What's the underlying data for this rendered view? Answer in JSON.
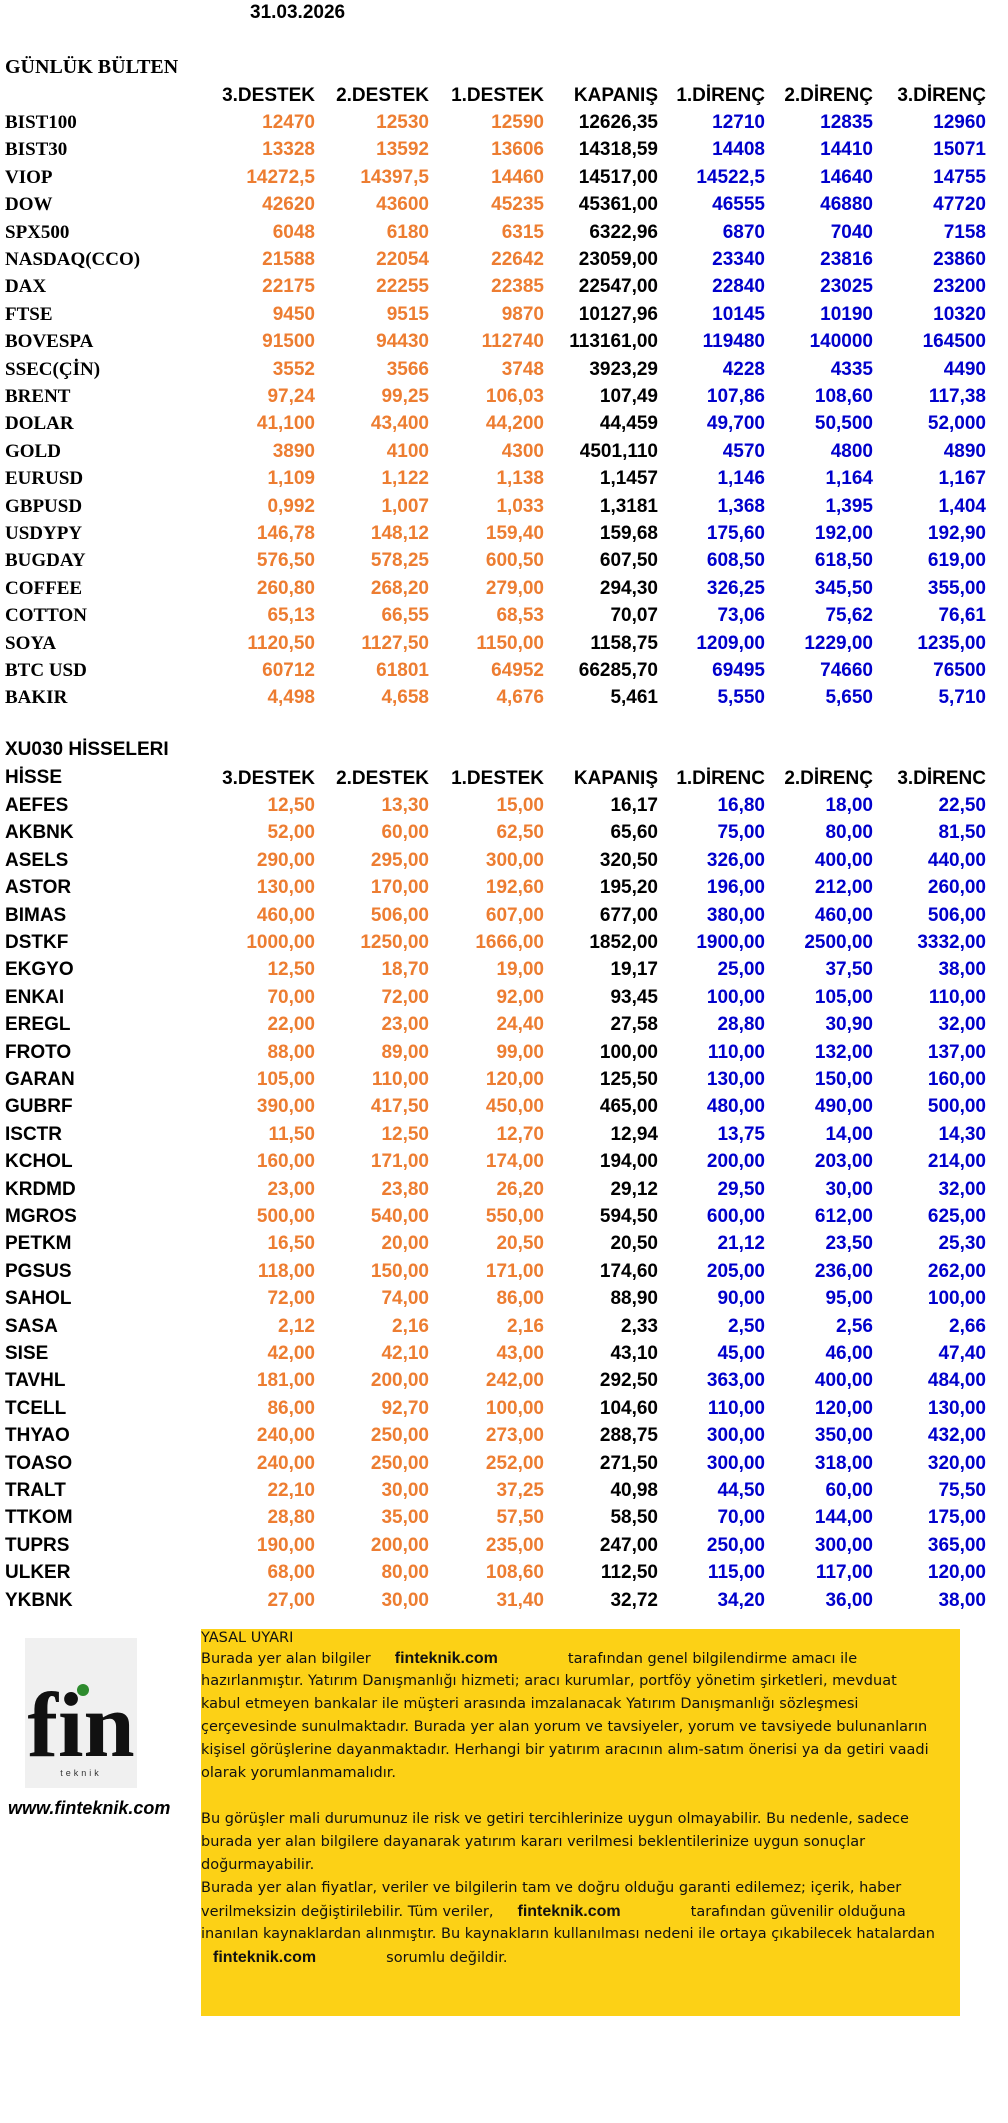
{
  "date": "31.03.2026",
  "table1": {
    "title": "GÜNLÜK BÜLTEN",
    "columns": [
      "3.DESTEK",
      "2.DESTEK",
      "1.DESTEK",
      "KAPANIŞ",
      "1.DİRENÇ",
      "2.DİRENÇ",
      "3.DİRENÇ"
    ],
    "rows": [
      {
        "name": "BIST100",
        "values": [
          "12470",
          "12530",
          "12590",
          "12626,35",
          "12710",
          "12835",
          "12960"
        ]
      },
      {
        "name": "BIST30",
        "values": [
          "13328",
          "13592",
          "13606",
          "14318,59",
          "14408",
          "14410",
          "15071"
        ]
      },
      {
        "name": "VIOP",
        "values": [
          "14272,5",
          "14397,5",
          "14460",
          "14517,00",
          "14522,5",
          "14640",
          "14755"
        ]
      },
      {
        "name": "DOW",
        "values": [
          "42620",
          "43600",
          "45235",
          "45361,00",
          "46555",
          "46880",
          "47720"
        ]
      },
      {
        "name": "SPX500",
        "values": [
          "6048",
          "6180",
          "6315",
          "6322,96",
          "6870",
          "7040",
          "7158"
        ]
      },
      {
        "name": "NASDAQ(CCO)",
        "values": [
          "21588",
          "22054",
          "22642",
          "23059,00",
          "23340",
          "23816",
          "23860"
        ]
      },
      {
        "name": "DAX",
        "values": [
          "22175",
          "22255",
          "22385",
          "22547,00",
          "22840",
          "23025",
          "23200"
        ]
      },
      {
        "name": "FTSE",
        "values": [
          "9450",
          "9515",
          "9870",
          "10127,96",
          "10145",
          "10190",
          "10320"
        ]
      },
      {
        "name": "BOVESPA",
        "values": [
          "91500",
          "94430",
          "112740",
          "113161,00",
          "119480",
          "140000",
          "164500"
        ]
      },
      {
        "name": "SSEC(ÇİN)",
        "values": [
          "3552",
          "3566",
          "3748",
          "3923,29",
          "4228",
          "4335",
          "4490"
        ]
      },
      {
        "name": "BRENT",
        "values": [
          "97,24",
          "99,25",
          "106,03",
          "107,49",
          "107,86",
          "108,60",
          "117,38"
        ]
      },
      {
        "name": "DOLAR",
        "values": [
          "41,100",
          "43,400",
          "44,200",
          "44,459",
          "49,700",
          "50,500",
          "52,000"
        ]
      },
      {
        "name": "GOLD",
        "values": [
          "3890",
          "4100",
          "4300",
          "4501,110",
          "4570",
          "4800",
          "4890"
        ]
      },
      {
        "name": "EURUSD",
        "values": [
          "1,109",
          "1,122",
          "1,138",
          "1,1457",
          "1,146",
          "1,164",
          "1,167"
        ]
      },
      {
        "name": "GBPUSD",
        "values": [
          "0,992",
          "1,007",
          "1,033",
          "1,3181",
          "1,368",
          "1,395",
          "1,404"
        ]
      },
      {
        "name": "USDYPY",
        "values": [
          "146,78",
          "148,12",
          "159,40",
          "159,68",
          "175,60",
          "192,00",
          "192,90"
        ]
      },
      {
        "name": "BUGDAY",
        "values": [
          "576,50",
          "578,25",
          "600,50",
          "607,50",
          "608,50",
          "618,50",
          "619,00"
        ]
      },
      {
        "name": "COFFEE",
        "values": [
          "260,80",
          "268,20",
          "279,00",
          "294,30",
          "326,25",
          "345,50",
          "355,00"
        ]
      },
      {
        "name": "COTTON",
        "values": [
          "65,13",
          "66,55",
          "68,53",
          "70,07",
          "73,06",
          "75,62",
          "76,61"
        ]
      },
      {
        "name": "SOYA",
        "values": [
          "1120,50",
          "1127,50",
          "1150,00",
          "1158,75",
          "1209,00",
          "1229,00",
          "1235,00"
        ]
      },
      {
        "name": "BTC USD",
        "values": [
          "60712",
          "61801",
          "64952",
          "66285,70",
          "69495",
          "74660",
          "76500"
        ]
      },
      {
        "name": "BAKIR",
        "values": [
          "4,498",
          "4,658",
          "4,676",
          "5,461",
          "5,550",
          "5,650",
          "5,710"
        ]
      }
    ]
  },
  "table2": {
    "title": "XU030 HİSSELERI",
    "name_header": "HİSSE",
    "columns": [
      "3.DESTEK",
      "2.DESTEK",
      "1.DESTEK",
      "KAPANIŞ",
      "1.DİRENC",
      "2.DİRENÇ",
      "3.DİRENC"
    ],
    "rows": [
      {
        "name": "AEFES",
        "values": [
          "12,50",
          "13,30",
          "15,00",
          "16,17",
          "16,80",
          "18,00",
          "22,50"
        ]
      },
      {
        "name": "AKBNK",
        "values": [
          "52,00",
          "60,00",
          "62,50",
          "65,60",
          "75,00",
          "80,00",
          "81,50"
        ]
      },
      {
        "name": "ASELS",
        "values": [
          "290,00",
          "295,00",
          "300,00",
          "320,50",
          "326,00",
          "400,00",
          "440,00"
        ]
      },
      {
        "name": "ASTOR",
        "values": [
          "130,00",
          "170,00",
          "192,60",
          "195,20",
          "196,00",
          "212,00",
          "260,00"
        ]
      },
      {
        "name": "BIMAS",
        "values": [
          "460,00",
          "506,00",
          "607,00",
          "677,00",
          "380,00",
          "460,00",
          "506,00"
        ]
      },
      {
        "name": "DSTKF",
        "values": [
          "1000,00",
          "1250,00",
          "1666,00",
          "1852,00",
          "1900,00",
          "2500,00",
          "3332,00"
        ]
      },
      {
        "name": "EKGYO",
        "values": [
          "12,50",
          "18,70",
          "19,00",
          "19,17",
          "25,00",
          "37,50",
          "38,00"
        ]
      },
      {
        "name": "ENKAI",
        "values": [
          "70,00",
          "72,00",
          "92,00",
          "93,45",
          "100,00",
          "105,00",
          "110,00"
        ]
      },
      {
        "name": "EREGL",
        "values": [
          "22,00",
          "23,00",
          "24,40",
          "27,58",
          "28,80",
          "30,90",
          "32,00"
        ]
      },
      {
        "name": "FROTO",
        "values": [
          "88,00",
          "89,00",
          "99,00",
          "100,00",
          "110,00",
          "132,00",
          "137,00"
        ]
      },
      {
        "name": "GARAN",
        "values": [
          "105,00",
          "110,00",
          "120,00",
          "125,50",
          "130,00",
          "150,00",
          "160,00"
        ]
      },
      {
        "name": "GUBRF",
        "values": [
          "390,00",
          "417,50",
          "450,00",
          "465,00",
          "480,00",
          "490,00",
          "500,00"
        ]
      },
      {
        "name": "ISCTR",
        "values": [
          "11,50",
          "12,50",
          "12,70",
          "12,94",
          "13,75",
          "14,00",
          "14,30"
        ]
      },
      {
        "name": "KCHOL",
        "values": [
          "160,00",
          "171,00",
          "174,00",
          "194,00",
          "200,00",
          "203,00",
          "214,00"
        ]
      },
      {
        "name": "KRDMD",
        "values": [
          "23,00",
          "23,80",
          "26,20",
          "29,12",
          "29,50",
          "30,00",
          "32,00"
        ]
      },
      {
        "name": "MGROS",
        "values": [
          "500,00",
          "540,00",
          "550,00",
          "594,50",
          "600,00",
          "612,00",
          "625,00"
        ]
      },
      {
        "name": "PETKM",
        "values": [
          "16,50",
          "20,00",
          "20,50",
          "20,50",
          "21,12",
          "23,50",
          "25,30"
        ]
      },
      {
        "name": "PGSUS",
        "values": [
          "118,00",
          "150,00",
          "171,00",
          "174,60",
          "205,00",
          "236,00",
          "262,00"
        ]
      },
      {
        "name": "SAHOL",
        "values": [
          "72,00",
          "74,00",
          "86,00",
          "88,90",
          "90,00",
          "95,00",
          "100,00"
        ]
      },
      {
        "name": "SASA",
        "values": [
          "2,12",
          "2,16",
          "2,16",
          "2,33",
          "2,50",
          "2,56",
          "2,66"
        ]
      },
      {
        "name": "SISE",
        "values": [
          "42,00",
          "42,10",
          "43,00",
          "43,10",
          "45,00",
          "46,00",
          "47,40"
        ]
      },
      {
        "name": "TAVHL",
        "values": [
          "181,00",
          "200,00",
          "242,00",
          "292,50",
          "363,00",
          "400,00",
          "484,00"
        ]
      },
      {
        "name": "TCELL",
        "values": [
          "86,00",
          "92,70",
          "100,00",
          "104,60",
          "110,00",
          "120,00",
          "130,00"
        ]
      },
      {
        "name": "THYAO",
        "values": [
          "240,00",
          "250,00",
          "273,00",
          "288,75",
          "300,00",
          "350,00",
          "432,00"
        ]
      },
      {
        "name": "TOASO",
        "values": [
          "240,00",
          "250,00",
          "252,00",
          "271,50",
          "300,00",
          "318,00",
          "320,00"
        ]
      },
      {
        "name": "TRALT",
        "values": [
          "22,10",
          "30,00",
          "37,25",
          "40,98",
          "44,50",
          "60,00",
          "75,50"
        ]
      },
      {
        "name": "TTKOM",
        "values": [
          "28,80",
          "35,00",
          "57,50",
          "58,50",
          "70,00",
          "144,00",
          "175,00"
        ]
      },
      {
        "name": "TUPRS",
        "values": [
          "190,00",
          "200,00",
          "235,00",
          "247,00",
          "250,00",
          "300,00",
          "365,00"
        ]
      },
      {
        "name": "ULKER",
        "values": [
          "68,00",
          "80,00",
          "108,60",
          "112,50",
          "115,00",
          "117,00",
          "120,00"
        ]
      },
      {
        "name": "YKBNK",
        "values": [
          "27,00",
          "30,00",
          "31,40",
          "32,72",
          "34,20",
          "36,00",
          "38,00"
        ]
      }
    ]
  },
  "logo": {
    "text": "fin",
    "sub": "teknik",
    "url": "www.finteknik.com"
  },
  "disclaimer": {
    "title": "YASAL UYARI",
    "lines": [
      [
        {
          "t": "Burada yer alan bilgiler"
        },
        {
          "t": "finteknik.com",
          "bold": true
        },
        {
          "t": "tarafından genel bilgilendirme amacı ile"
        }
      ],
      [
        {
          "t": "hazırlanmıştır. Yatırım Danışmanlığı hizmeti; aracı kurumlar, portföy yönetim şirketleri, mevduat"
        }
      ],
      [
        {
          "t": "kabul etmeyen bankalar ile müşteri arasında imzalanacak Yatırım Danışmanlığı sözleşmesi"
        }
      ],
      [
        {
          "t": "çerçevesinde sunulmaktadır. Burada yer alan yorum ve tavsiyeler, yorum ve tavsiyede bulunanların"
        }
      ],
      [
        {
          "t": "kişisel görüşlerine dayanmaktadır. Herhangi bir yatırım aracının alım-satım önerisi ya da getiri vaadi"
        }
      ],
      [
        {
          "t": "olarak yorumlanmamalıdır."
        }
      ],
      [],
      [
        {
          "t": "Bu görüşler mali durumunuz ile risk ve getiri tercihlerinize uygun olmayabilir. Bu nedenle, sadece"
        }
      ],
      [
        {
          "t": "burada yer alan bilgilere dayanarak yatırım kararı verilmesi beklentilerinize uygun sonuçlar"
        }
      ],
      [
        {
          "t": "doğurmayabilir."
        }
      ],
      [
        {
          "t": "Burada yer alan fiyatlar, veriler ve bilgilerin tam ve doğru olduğu garanti edilemez; içerik, haber"
        }
      ],
      [
        {
          "t": "verilmeksizin değiştirilebilir. Tüm veriler,"
        },
        {
          "t": "finteknik.com",
          "bold": true
        },
        {
          "t": "tarafından güvenilir olduğuna"
        }
      ],
      [
        {
          "t": "inanılan kaynaklardan alınmıştır. Bu kaynakların kullanılması nedeni ile ortaya çıkabilecek hatalardan"
        }
      ],
      [
        {
          "t": "finteknik.com",
          "bold": true
        },
        {
          "t": "sorumlu değildir."
        }
      ]
    ]
  }
}
